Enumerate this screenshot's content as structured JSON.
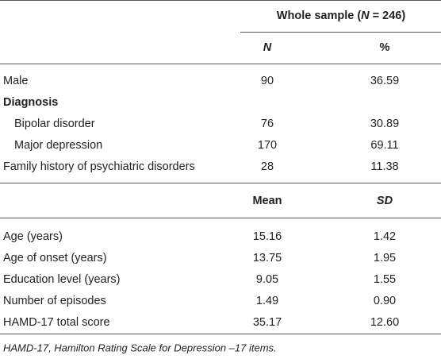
{
  "table": {
    "header": {
      "group": [
        "Whole sample (",
        "N",
        " = 246)"
      ],
      "cols1": [
        "N",
        "%"
      ],
      "cols2": [
        "Mean",
        "SD"
      ]
    },
    "rows": [
      [
        "Male",
        "90",
        "36.59"
      ],
      [
        "Diagnosis"
      ],
      [
        "Bipolar disorder",
        "76",
        "30.89"
      ],
      [
        "Major depression",
        "170",
        "69.11"
      ],
      [
        "Family history of psychiatric disorders",
        "28",
        "11.38"
      ]
    ],
    "rows2": [
      [
        "Age (years)",
        "15.16",
        "1.42"
      ],
      [
        "Age of onset (years)",
        "13.75",
        "1.95"
      ],
      [
        "Education level (years)",
        "9.05",
        "1.55"
      ],
      [
        "Number of episodes",
        "1.49",
        "0.90"
      ],
      [
        "HAMD-17 total score",
        "35.17",
        "12.60"
      ]
    ],
    "footnote": "HAMD-17, Hamilton Rating Scale for Depression –17 items."
  }
}
